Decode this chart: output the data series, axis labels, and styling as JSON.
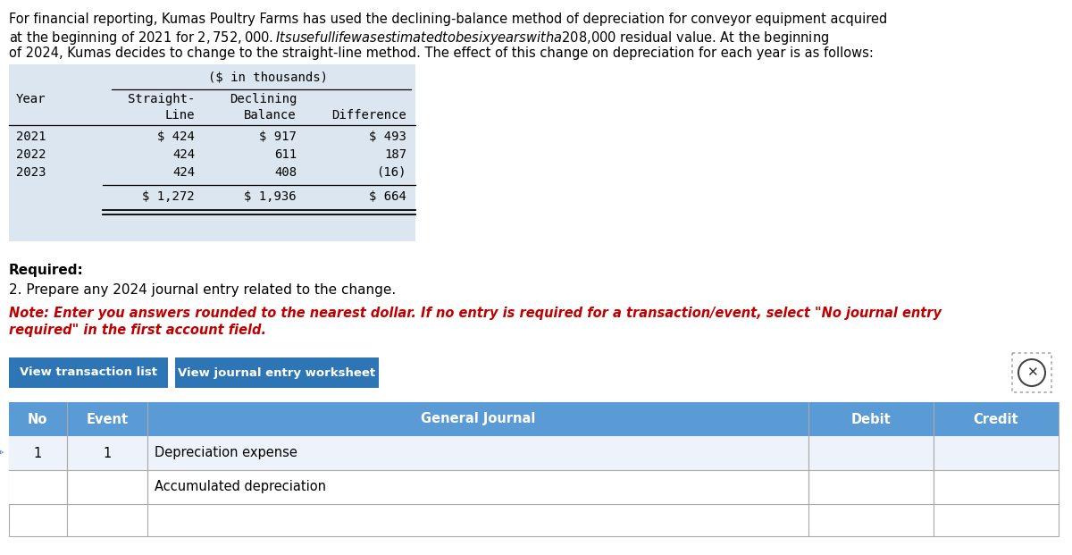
{
  "bg_color": "#ffffff",
  "header_line1": "For financial reporting, Kumas Poultry Farms has used the declining-balance method of depreciation for conveyor equipment acquired",
  "header_line2": "at the beginning of 2021 for $2,752,000. Its useful life was estimated to be six years with a $208,000 residual value. At the beginning",
  "header_line3": "of 2024, Kumas decides to change to the straight-line method. The effect of this change on depreciation for each year is as follows:",
  "table_header_bg": "#dce6f1",
  "table_units_header": "($ in thousands)",
  "table_col1_header": "Year",
  "table_col2_header1": "Straight-",
  "table_col2_header2": "Line",
  "table_col3_header1": "Declining",
  "table_col3_header2": "Balance",
  "table_col4_header": "Difference",
  "table_rows": [
    [
      "2021",
      "$ 424",
      "$ 917",
      "$ 493"
    ],
    [
      "2022",
      "424",
      "611",
      "187"
    ],
    [
      "2023",
      "424",
      "408",
      "(16)"
    ]
  ],
  "table_total_row": [
    "",
    "$ 1,272",
    "$ 1,936",
    "$ 664"
  ],
  "required_label": "Required:",
  "required_text2": "2. Prepare any 2024 journal entry related to the change.",
  "note_line1": "Note: Enter you answers rounded to the nearest dollar. If no entry is required for a transaction/event, select \"No journal entry",
  "note_line2": "required\" in the first account field.",
  "btn1_text": "View transaction list",
  "btn2_text": "View journal entry worksheet",
  "btn_bg": "#2e75b6",
  "btn_text_color": "#ffffff",
  "journal_header_bg": "#5b9bd5",
  "journal_header_text_color": "#ffffff",
  "journal_col_no": "No",
  "journal_col_event": "Event",
  "journal_col_gj": "General Journal",
  "journal_col_debit": "Debit",
  "journal_col_credit": "Credit",
  "journal_row1": [
    "1",
    "1",
    "Depreciation expense"
  ],
  "journal_row2": [
    "",
    "",
    "Accumulated depreciation"
  ],
  "note_color": "#c00000",
  "font": "DejaVu Sans"
}
